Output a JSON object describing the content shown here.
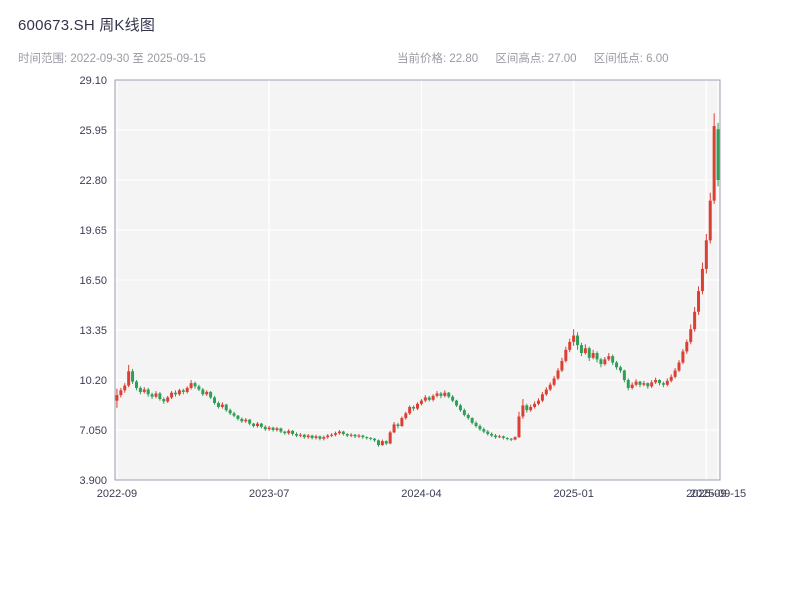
{
  "header": {
    "title": "600673.SH 周K线图",
    "time_range": "时间范围: 2022-09-30 至 2025-09-15",
    "current_price": "当前价格: 22.80",
    "range_high": "区间高点: 27.00",
    "range_low": "区间低点: 6.00"
  },
  "chart_data": {
    "type": "candlestick",
    "symbol": "600673.SH",
    "title": "600673.SH 周K线图",
    "period": "周K",
    "date_range": {
      "start": "2022-09-30",
      "end": "2025-09-15"
    },
    "current_price": 22.8,
    "range_high": 27.0,
    "range_low": 6.0,
    "ylim": [
      3.9,
      29.1
    ],
    "grid": true,
    "legend": "none",
    "y_ticks": [
      {
        "label": "3.900",
        "value": 3.9
      },
      {
        "label": "7.050",
        "value": 7.05
      },
      {
        "label": "10.20",
        "value": 10.2
      },
      {
        "label": "13.35",
        "value": 13.35
      },
      {
        "label": "16.50",
        "value": 16.5
      },
      {
        "label": "19.65",
        "value": 19.65
      },
      {
        "label": "22.80",
        "value": 22.8
      },
      {
        "label": "25.95",
        "value": 25.95
      },
      {
        "label": "29.10",
        "value": 29.1
      }
    ],
    "x_ticks": [
      {
        "label": "2022-09",
        "index": 0
      },
      {
        "label": "2023-07",
        "index": 39
      },
      {
        "label": "2024-04",
        "index": 78
      },
      {
        "label": "2025-01",
        "index": 117
      },
      {
        "label": "2025-09",
        "index": 151
      },
      {
        "label": "2025-09-15",
        "index": 154
      }
    ],
    "colors": {
      "up": "#dc3f34",
      "down": "#2f9e57",
      "panel": "#f4f4f5",
      "grid": "#ffffff",
      "border": "#9aa0ae",
      "tick_text": "#3c3c55"
    },
    "candles": [
      [
        8.9,
        9.65,
        8.45,
        9.25
      ],
      [
        9.25,
        9.7,
        9.1,
        9.55
      ],
      [
        9.55,
        10.0,
        9.4,
        9.85
      ],
      [
        9.85,
        11.15,
        9.75,
        10.75
      ],
      [
        10.75,
        10.9,
        9.95,
        10.1
      ],
      [
        10.1,
        10.2,
        9.55,
        9.7
      ],
      [
        9.7,
        9.8,
        9.3,
        9.45
      ],
      [
        9.45,
        9.75,
        9.35,
        9.6
      ],
      [
        9.6,
        9.7,
        9.15,
        9.3
      ],
      [
        9.3,
        9.4,
        9.0,
        9.15
      ],
      [
        9.15,
        9.5,
        9.05,
        9.35
      ],
      [
        9.35,
        9.45,
        8.9,
        9.0
      ],
      [
        9.0,
        9.1,
        8.7,
        8.85
      ],
      [
        8.85,
        9.2,
        8.75,
        9.1
      ],
      [
        9.1,
        9.5,
        9.0,
        9.4
      ],
      [
        9.4,
        9.55,
        9.15,
        9.3
      ],
      [
        9.3,
        9.65,
        9.2,
        9.55
      ],
      [
        9.55,
        9.65,
        9.3,
        9.45
      ],
      [
        9.45,
        9.8,
        9.35,
        9.7
      ],
      [
        9.7,
        10.2,
        9.6,
        10.0
      ],
      [
        10.0,
        10.1,
        9.65,
        9.8
      ],
      [
        9.8,
        9.9,
        9.5,
        9.6
      ],
      [
        9.6,
        9.7,
        9.2,
        9.3
      ],
      [
        9.3,
        9.55,
        9.2,
        9.45
      ],
      [
        9.45,
        9.5,
        9.0,
        9.1
      ],
      [
        9.1,
        9.2,
        8.65,
        8.75
      ],
      [
        8.75,
        8.85,
        8.4,
        8.5
      ],
      [
        8.5,
        8.8,
        8.4,
        8.65
      ],
      [
        8.65,
        8.7,
        8.2,
        8.3
      ],
      [
        8.3,
        8.4,
        8.0,
        8.1
      ],
      [
        8.1,
        8.2,
        7.85,
        7.95
      ],
      [
        7.95,
        8.0,
        7.65,
        7.75
      ],
      [
        7.75,
        7.85,
        7.5,
        7.6
      ],
      [
        7.6,
        7.8,
        7.5,
        7.7
      ],
      [
        7.7,
        7.75,
        7.35,
        7.45
      ],
      [
        7.45,
        7.5,
        7.2,
        7.3
      ],
      [
        7.3,
        7.55,
        7.2,
        7.45
      ],
      [
        7.45,
        7.5,
        7.15,
        7.25
      ],
      [
        7.25,
        7.35,
        7.0,
        7.1
      ],
      [
        7.1,
        7.3,
        7.0,
        7.2
      ],
      [
        7.2,
        7.25,
        6.95,
        7.05
      ],
      [
        7.05,
        7.25,
        6.95,
        7.15
      ],
      [
        7.15,
        7.2,
        6.85,
        6.95
      ],
      [
        6.95,
        7.0,
        6.75,
        6.85
      ],
      [
        6.85,
        7.1,
        6.75,
        7.0
      ],
      [
        7.0,
        7.05,
        6.7,
        6.8
      ],
      [
        6.8,
        6.9,
        6.6,
        6.7
      ],
      [
        6.7,
        6.85,
        6.6,
        6.75
      ],
      [
        6.75,
        6.8,
        6.5,
        6.6
      ],
      [
        6.6,
        6.8,
        6.5,
        6.7
      ],
      [
        6.7,
        6.75,
        6.45,
        6.55
      ],
      [
        6.55,
        6.75,
        6.45,
        6.65
      ],
      [
        6.65,
        6.7,
        6.4,
        6.5
      ],
      [
        6.5,
        6.7,
        6.4,
        6.6
      ],
      [
        6.6,
        6.8,
        6.5,
        6.7
      ],
      [
        6.7,
        6.85,
        6.6,
        6.75
      ],
      [
        6.75,
        6.95,
        6.65,
        6.85
      ],
      [
        6.85,
        7.05,
        6.75,
        6.95
      ],
      [
        6.95,
        7.0,
        6.7,
        6.8
      ],
      [
        6.8,
        6.85,
        6.6,
        6.7
      ],
      [
        6.7,
        6.85,
        6.6,
        6.75
      ],
      [
        6.75,
        6.8,
        6.55,
        6.65
      ],
      [
        6.65,
        6.8,
        6.55,
        6.7
      ],
      [
        6.7,
        6.75,
        6.5,
        6.6
      ],
      [
        6.6,
        6.65,
        6.45,
        6.55
      ],
      [
        6.55,
        6.6,
        6.4,
        6.5
      ],
      [
        6.5,
        6.55,
        6.3,
        6.4
      ],
      [
        6.4,
        6.45,
        6.0,
        6.1
      ],
      [
        6.1,
        6.45,
        6.05,
        6.35
      ],
      [
        6.35,
        6.4,
        6.1,
        6.2
      ],
      [
        6.2,
        7.0,
        6.15,
        6.9
      ],
      [
        6.9,
        7.55,
        6.85,
        7.4
      ],
      [
        7.4,
        7.5,
        7.15,
        7.3
      ],
      [
        7.3,
        7.9,
        7.25,
        7.8
      ],
      [
        7.8,
        8.2,
        7.7,
        8.1
      ],
      [
        8.1,
        8.6,
        8.0,
        8.5
      ],
      [
        8.5,
        8.6,
        8.25,
        8.4
      ],
      [
        8.4,
        8.8,
        8.3,
        8.7
      ],
      [
        8.7,
        9.0,
        8.6,
        8.9
      ],
      [
        8.9,
        9.25,
        8.8,
        9.1
      ],
      [
        9.1,
        9.2,
        8.85,
        8.95
      ],
      [
        8.95,
        9.3,
        8.85,
        9.2
      ],
      [
        9.2,
        9.5,
        9.1,
        9.35
      ],
      [
        9.35,
        9.45,
        9.05,
        9.2
      ],
      [
        9.2,
        9.55,
        9.1,
        9.4
      ],
      [
        9.4,
        9.45,
        9.05,
        9.15
      ],
      [
        9.15,
        9.25,
        8.8,
        8.9
      ],
      [
        8.9,
        8.95,
        8.5,
        8.6
      ],
      [
        8.6,
        8.7,
        8.2,
        8.3
      ],
      [
        8.3,
        8.4,
        7.9,
        8.0
      ],
      [
        8.0,
        8.1,
        7.7,
        7.8
      ],
      [
        7.8,
        7.85,
        7.4,
        7.5
      ],
      [
        7.5,
        7.6,
        7.2,
        7.3
      ],
      [
        7.3,
        7.4,
        7.0,
        7.1
      ],
      [
        7.1,
        7.2,
        6.85,
        6.95
      ],
      [
        6.95,
        7.05,
        6.7,
        6.8
      ],
      [
        6.8,
        6.9,
        6.6,
        6.7
      ],
      [
        6.7,
        6.8,
        6.5,
        6.6
      ],
      [
        6.6,
        6.75,
        6.55,
        6.65
      ],
      [
        6.65,
        6.7,
        6.45,
        6.55
      ],
      [
        6.55,
        6.6,
        6.4,
        6.5
      ],
      [
        6.5,
        6.55,
        6.35,
        6.45
      ],
      [
        6.45,
        6.65,
        6.4,
        6.6
      ],
      [
        6.6,
        8.2,
        6.55,
        7.9
      ],
      [
        7.9,
        9.0,
        7.75,
        8.6
      ],
      [
        8.6,
        8.7,
        8.15,
        8.3
      ],
      [
        8.3,
        8.65,
        8.2,
        8.5
      ],
      [
        8.5,
        8.85,
        8.4,
        8.7
      ],
      [
        8.7,
        9.05,
        8.6,
        8.9
      ],
      [
        8.9,
        9.45,
        8.8,
        9.3
      ],
      [
        9.3,
        9.75,
        9.2,
        9.6
      ],
      [
        9.6,
        10.05,
        9.5,
        9.9
      ],
      [
        9.9,
        10.45,
        9.8,
        10.3
      ],
      [
        10.3,
        10.95,
        10.2,
        10.8
      ],
      [
        10.8,
        11.6,
        10.7,
        11.4
      ],
      [
        11.4,
        12.3,
        11.3,
        12.1
      ],
      [
        12.1,
        12.8,
        11.95,
        12.6
      ],
      [
        12.6,
        13.4,
        12.35,
        13.0
      ],
      [
        13.0,
        13.2,
        12.1,
        12.4
      ],
      [
        12.4,
        12.55,
        11.7,
        11.9
      ],
      [
        11.9,
        12.45,
        11.8,
        12.2
      ],
      [
        12.2,
        12.3,
        11.4,
        11.6
      ],
      [
        11.6,
        12.1,
        11.5,
        11.9
      ],
      [
        11.9,
        12.0,
        11.3,
        11.5
      ],
      [
        11.5,
        11.6,
        11.0,
        11.2
      ],
      [
        11.2,
        11.65,
        11.1,
        11.5
      ],
      [
        11.5,
        11.9,
        11.4,
        11.7
      ],
      [
        11.7,
        11.8,
        11.15,
        11.3
      ],
      [
        11.3,
        11.4,
        10.85,
        11.0
      ],
      [
        11.0,
        11.1,
        10.65,
        10.8
      ],
      [
        10.8,
        10.85,
        10.05,
        10.2
      ],
      [
        10.2,
        10.3,
        9.55,
        9.7
      ],
      [
        9.7,
        10.05,
        9.6,
        9.9
      ],
      [
        9.9,
        10.25,
        9.8,
        10.1
      ],
      [
        10.1,
        10.15,
        9.75,
        9.9
      ],
      [
        9.9,
        10.15,
        9.8,
        10.0
      ],
      [
        10.0,
        10.05,
        9.65,
        9.8
      ],
      [
        9.8,
        10.2,
        9.7,
        10.05
      ],
      [
        10.05,
        10.35,
        9.95,
        10.2
      ],
      [
        10.2,
        10.25,
        9.85,
        10.0
      ],
      [
        10.0,
        10.1,
        9.75,
        9.9
      ],
      [
        9.9,
        10.3,
        9.8,
        10.15
      ],
      [
        10.15,
        10.55,
        10.05,
        10.4
      ],
      [
        10.4,
        10.95,
        10.3,
        10.8
      ],
      [
        10.8,
        11.45,
        10.7,
        11.3
      ],
      [
        11.3,
        12.15,
        11.2,
        12.0
      ],
      [
        12.0,
        12.75,
        11.85,
        12.6
      ],
      [
        12.6,
        13.7,
        12.45,
        13.4
      ],
      [
        13.4,
        14.8,
        13.25,
        14.5
      ],
      [
        14.5,
        16.1,
        14.3,
        15.8
      ],
      [
        15.8,
        17.6,
        15.6,
        17.2
      ],
      [
        17.2,
        19.4,
        16.9,
        19.0
      ],
      [
        19.0,
        22.0,
        18.8,
        21.5
      ],
      [
        21.5,
        27.0,
        21.3,
        26.2
      ],
      [
        26.0,
        26.4,
        22.4,
        22.8
      ]
    ]
  }
}
